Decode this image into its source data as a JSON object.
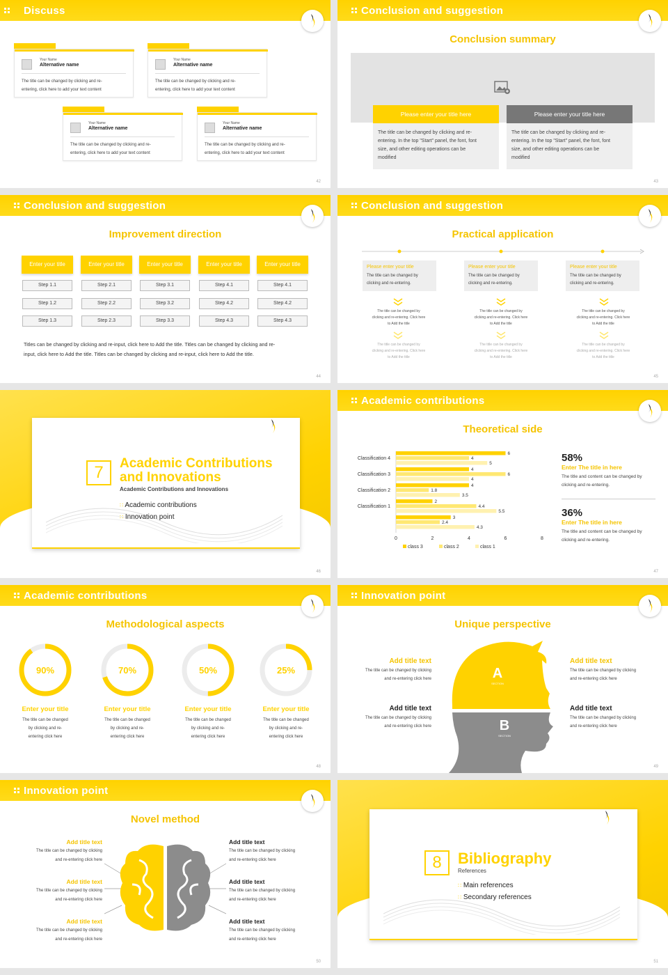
{
  "colors": {
    "accent": "#ffd200",
    "gray": "#8c8c8c",
    "light_gray": "#e8e8e8"
  },
  "icons": {
    "logo": "flame-logo-icon",
    "image_placeholder": "image-icon",
    "head": "head-silhouette-icon",
    "brain": "brain-icon"
  },
  "s42": {
    "title": "Discuss",
    "page": "42",
    "cards": [
      {
        "small": "Your Name",
        "name": "Alternative name",
        "body1": "The title can be changed by clicking and re-",
        "body2": "entering, click here to add your text content"
      },
      {
        "small": "Your Name",
        "name": "Alternative name",
        "body1": "The title can be changed by clicking and re-",
        "body2": "entering, click here to add your text content"
      },
      {
        "small": "Your Name",
        "name": "Alternative name",
        "body1": "The title can be changed by clicking and re-",
        "body2": "entering, click here to add your text content"
      },
      {
        "small": "Your Name",
        "name": "Alternative name",
        "body1": "The title can be changed by clicking and re-",
        "body2": "entering, click here to add your text content"
      }
    ]
  },
  "s43": {
    "title": "Conclusion and suggestion",
    "subtitle": "Conclusion summary",
    "page": "43",
    "boxes": [
      {
        "label": "Please enter your title here",
        "l1": "The title can be changed by clicking and re-",
        "l2": "entering. In the top \"Start\" panel, the font, font",
        "l3": "size, and other editing operations can be",
        "l4": "modified"
      },
      {
        "label": "Please enter your title here",
        "l1": "The title can be changed by clicking and re-",
        "l2": "entering. In the top \"Start\" panel, the font, font",
        "l3": "size, and other editing operations can be",
        "l4": "modified"
      }
    ]
  },
  "s44": {
    "title": "Conclusion and suggestion",
    "subtitle": "Improvement direction",
    "page": "44",
    "columns": [
      {
        "head": "Enter your title",
        "steps": [
          "Step 1.1",
          "Step 1.2",
          "Step 1.3"
        ]
      },
      {
        "head": "Enter your title",
        "steps": [
          "Step 2.1",
          "Step 2.2",
          "Step 2.3"
        ]
      },
      {
        "head": "Enter your title",
        "steps": [
          "Step 3.1",
          "Step 3.2",
          "Step 3.3"
        ]
      },
      {
        "head": "Enter your title",
        "steps": [
          "Step 4.1",
          "Step 4.2",
          "Step 4.3"
        ]
      },
      {
        "head": "Enter your title",
        "steps": [
          "Step 4.1",
          "Step 4.2",
          "Step 4.3"
        ]
      }
    ],
    "footer1": "Titles can be changed by clicking and re-input, click here to Add the title. Titles can be changed by clicking and re-",
    "footer2": "input, click here to Add the title. Titles can be changed by clicking and re-input, click here to Add the title."
  },
  "s45": {
    "title": "Conclusion and suggestion",
    "subtitle": "Practical application",
    "page": "45",
    "cols": [
      {
        "head": "Please enter your title",
        "b1": "The title can be changed by",
        "b2": "clicking and re-entering.",
        "m1": "The title can be changed by",
        "m2": "clicking and re-entering. Click here",
        "m3": "to Add the title",
        "f1": "The title can be changed by",
        "f2": "clicking and re-entering. Click here",
        "f3": "to Add the title"
      },
      {
        "head": "Please enter your title",
        "b1": "The title can be changed by",
        "b2": "clicking and re-entering.",
        "m1": "The title can be changed by",
        "m2": "clicking and re-entering. Click here",
        "m3": "to Add the title",
        "f1": "The title can be changed by",
        "f2": "clicking and re-entering. Click here",
        "f3": "to Add the title"
      },
      {
        "head": "Please enter your title",
        "b1": "The title can be changed by",
        "b2": "clicking and re-entering.",
        "m1": "The title can be changed by",
        "m2": "clicking and re-entering. Click here",
        "m3": "to Add the title",
        "f1": "The title can be changed by",
        "f2": "clicking and re-entering. Click here",
        "f3": "to Add the title"
      }
    ]
  },
  "s46": {
    "number": "7",
    "title1": "Academic Contributions",
    "title2": "and Innovations",
    "subtitle": "Academic Contributions and Innovations",
    "items": [
      "Academic contributions",
      "Innovation point"
    ],
    "page": "46"
  },
  "s47": {
    "title": "Academic contributions",
    "subtitle": "Theoretical side",
    "page": "47",
    "stats": [
      {
        "pct": "58%",
        "head": "Enter The title in here",
        "b1": "The title and content can be changed by",
        "b2": "clicking and re-entering."
      },
      {
        "pct": "36%",
        "head": "Enter The title in here",
        "b1": "The title and content can be changed by",
        "b2": "clicking and re-entering."
      }
    ]
  },
  "chart_data": {
    "type": "bar",
    "orientation": "horizontal",
    "categories": [
      "Classification 4",
      "Classification 3",
      "Classification 2",
      "Classification 1",
      ""
    ],
    "series": [
      {
        "name": "class 3",
        "values": [
          6,
          4,
          4,
          2,
          3
        ]
      },
      {
        "name": "class 2",
        "values": [
          4,
          6,
          1.8,
          4.4,
          2.4
        ]
      },
      {
        "name": "class 1",
        "values": [
          5,
          4,
          3.5,
          5.5,
          4.3
        ]
      }
    ],
    "xlim": [
      0,
      8
    ],
    "xticks": [
      "0",
      "2",
      "4",
      "6",
      "8"
    ],
    "legend": "bottom",
    "series_colors": [
      "#ffd200",
      "#ffe873",
      "#fff1b0"
    ]
  },
  "s48": {
    "title": "Academic contributions",
    "subtitle": "Methodological aspects",
    "page": "48",
    "rings": [
      {
        "label": "90%",
        "value": 0.9,
        "head": "Enter your title",
        "l1": "The title can be changed",
        "l2": "by clicking and re-",
        "l3": "entering click here"
      },
      {
        "label": "70%",
        "value": 0.7,
        "head": "Enter your title",
        "l1": "The title can be changed",
        "l2": "by clicking and re-",
        "l3": "entering click here"
      },
      {
        "label": "50%",
        "value": 0.5,
        "head": "Enter your title",
        "l1": "The title can be changed",
        "l2": "by clicking and re-",
        "l3": "entering click here"
      },
      {
        "label": "25%",
        "value": 0.25,
        "head": "Enter your title",
        "l1": "The title can be changed",
        "l2": "by clicking and re-",
        "l3": "entering click here"
      }
    ]
  },
  "s49": {
    "title": "Innovation point",
    "subtitle": "Unique perspective",
    "page": "49",
    "a": "A",
    "a_sub": "SECTION",
    "b": "B",
    "b_sub": "SECTION",
    "texts": [
      {
        "head": "Add title text",
        "l1": "The title can be changed by clicking",
        "l2": "and re-entering click here"
      },
      {
        "head": "Add title text",
        "l1": "The title can be changed by clicking",
        "l2": "and re-entering click here"
      },
      {
        "head": "Add title text",
        "l1": "The title can be changed by clicking",
        "l2": "and re-entering click here"
      },
      {
        "head": "Add title text",
        "l1": "The title can be changed by clicking",
        "l2": "and re-entering click here"
      }
    ]
  },
  "s50": {
    "title": "Innovation point",
    "subtitle": "Novel method",
    "page": "50",
    "texts": [
      {
        "head": "Add title text",
        "l1": "The title can be changed by clicking",
        "l2": "and re-entering click here"
      },
      {
        "head": "Add title text",
        "l1": "The title can be changed by clicking",
        "l2": "and re-entering click here"
      },
      {
        "head": "Add title text",
        "l1": "The title can be changed by clicking",
        "l2": "and re-entering click here"
      },
      {
        "head": "Add title text",
        "l1": "The title can be changed by clicking",
        "l2": "and re-entering click here"
      },
      {
        "head": "Add title text",
        "l1": "The title can be changed by clicking",
        "l2": "and re-entering click here"
      },
      {
        "head": "Add title text",
        "l1": "The title can be changed by clicking",
        "l2": "and re-entering click here"
      }
    ]
  },
  "s51": {
    "number": "8",
    "title": "Bibliography",
    "subtitle": "References",
    "items": [
      "Main references",
      "Secondary references"
    ],
    "page": "51"
  }
}
